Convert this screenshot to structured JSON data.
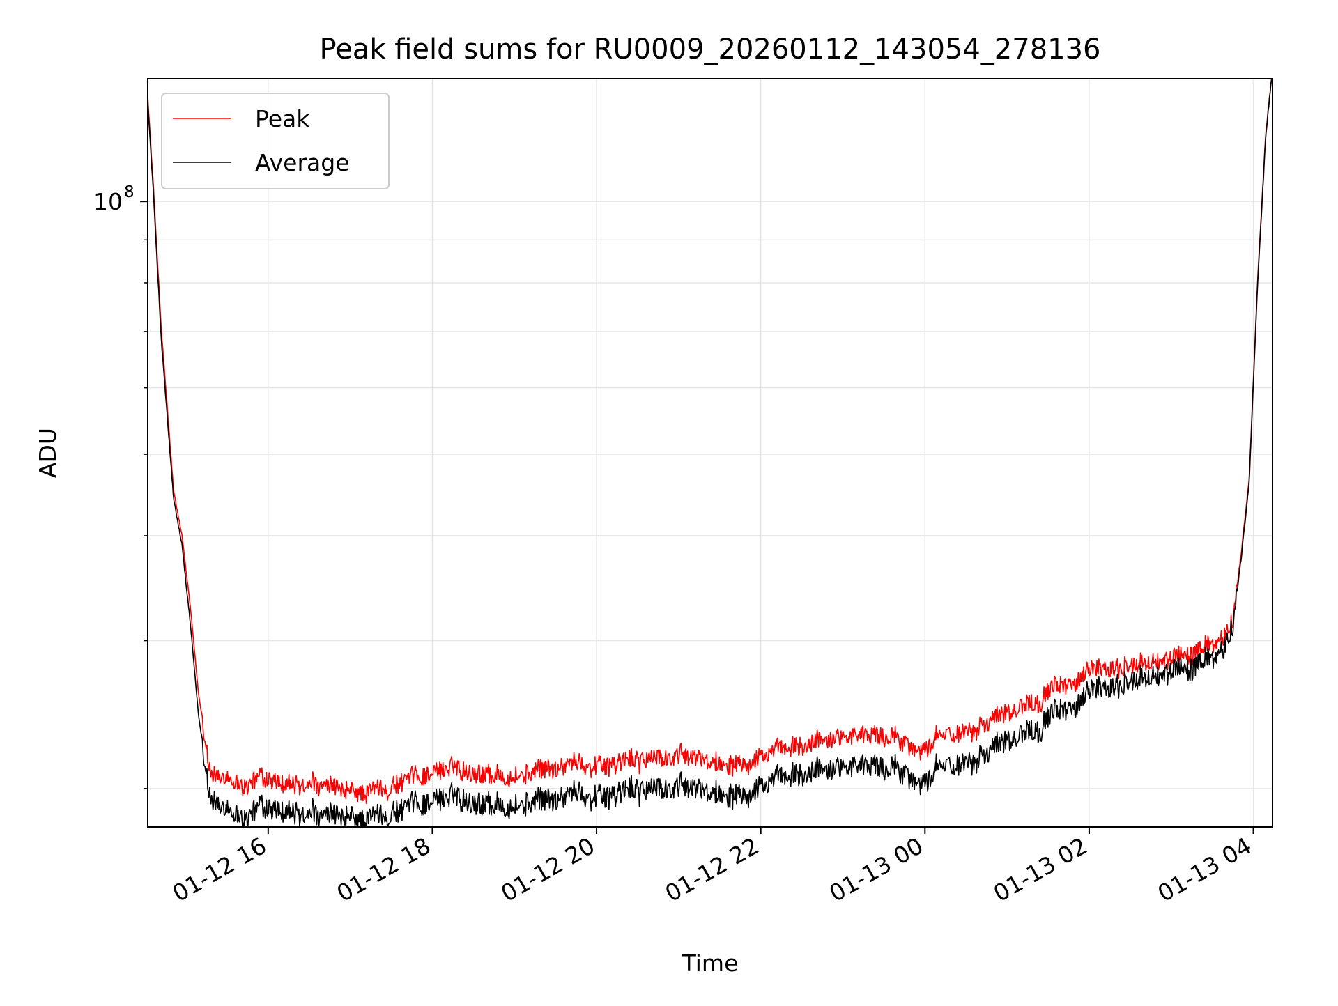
{
  "chart_data": {
    "type": "line",
    "title": "Peak field sums for RU0009_20260112_143054_278136",
    "xlabel": "Time",
    "ylabel": "ADU",
    "yscale": "log",
    "ylim": [
      18000000,
      140000000
    ],
    "xlim_hours": [
      14.533,
      28.233
    ],
    "x_ticks": [
      {
        "label": "01-12 16",
        "hours": 16
      },
      {
        "label": "01-12 18",
        "hours": 18
      },
      {
        "label": "01-12 20",
        "hours": 20
      },
      {
        "label": "01-12 22",
        "hours": 22
      },
      {
        "label": "01-13 00",
        "hours": 24
      },
      {
        "label": "01-13 02",
        "hours": 26
      },
      {
        "label": "01-13 04",
        "hours": 28
      }
    ],
    "y_major_ticks": [
      {
        "label_base": "10",
        "label_exp": "8",
        "value": 100000000
      }
    ],
    "y_minor_ticks": [
      20000000,
      30000000,
      40000000,
      50000000,
      60000000,
      70000000,
      80000000,
      90000000,
      200000000
    ],
    "grid": true,
    "legend_position": "top-left",
    "series": [
      {
        "name": "Peak",
        "color": "#ff0000",
        "noise": 0.025,
        "x_hours": [
          14.53,
          14.6,
          14.7,
          14.85,
          14.95,
          15.05,
          15.15,
          15.3,
          15.5,
          15.7,
          15.9,
          16.2,
          16.6,
          17.0,
          17.4,
          17.8,
          18.2,
          18.6,
          19.0,
          19.4,
          19.8,
          20.2,
          20.6,
          21.0,
          21.5,
          22.0,
          22.5,
          23.0,
          23.5,
          23.8,
          24.0,
          24.5,
          25.0,
          25.5,
          26.0,
          26.5,
          27.0,
          27.3,
          27.5,
          27.65,
          27.75,
          27.85,
          27.95,
          28.05,
          28.15,
          28.22
        ],
        "values": [
          135000000,
          105000000,
          70000000,
          45000000,
          40000000,
          33000000,
          26000000,
          21000000,
          20300000,
          20100000,
          20600000,
          20000000,
          20100000,
          19700000,
          20000000,
          20700000,
          21200000,
          21000000,
          20600000,
          21100000,
          21400000,
          21500000,
          21700000,
          21800000,
          21500000,
          22000000,
          22300000,
          23300000,
          23100000,
          22700000,
          22400000,
          23600000,
          24800000,
          26000000,
          27400000,
          28000000,
          28600000,
          29000000,
          29600000,
          30500000,
          32000000,
          38000000,
          47000000,
          80000000,
          120000000,
          140000000
        ]
      },
      {
        "name": "Average",
        "color": "#000000",
        "noise": 0.03,
        "x_hours": [
          14.53,
          14.6,
          14.7,
          14.85,
          14.95,
          15.05,
          15.15,
          15.3,
          15.5,
          15.7,
          15.9,
          16.2,
          16.6,
          17.0,
          17.4,
          17.8,
          18.2,
          18.6,
          19.0,
          19.4,
          19.8,
          20.2,
          20.6,
          21.0,
          21.5,
          22.0,
          22.5,
          23.0,
          23.5,
          23.8,
          24.0,
          24.5,
          25.0,
          25.5,
          26.0,
          26.5,
          27.0,
          27.3,
          27.5,
          27.65,
          27.75,
          27.85,
          27.95,
          28.05,
          28.15,
          28.22
        ],
        "values": [
          133000000,
          103000000,
          68000000,
          44000000,
          39000000,
          31500000,
          24500000,
          19600000,
          18600000,
          18400000,
          19000000,
          18500000,
          18500000,
          18300000,
          18600000,
          19200000,
          19600000,
          19400000,
          19000000,
          19400000,
          19700000,
          19800000,
          20000000,
          20000000,
          19800000,
          20300000,
          20600000,
          21500000,
          21200000,
          20900000,
          20500000,
          21700000,
          23000000,
          24200000,
          25800000,
          26800000,
          27600000,
          27900000,
          28500000,
          29600000,
          31500000,
          37500000,
          46500000,
          79000000,
          119000000,
          140000000
        ]
      }
    ]
  }
}
